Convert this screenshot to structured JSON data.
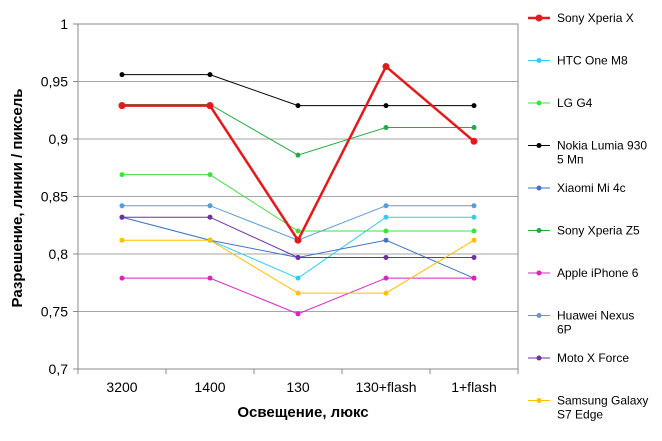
{
  "chart_data": {
    "type": "line",
    "categories": [
      "3200",
      "1400",
      "130",
      "130+flash",
      "1+flash"
    ],
    "xlabel": "Освещение,  люкс",
    "ylabel": "Разрешение,  линии / пиксель",
    "ylim": [
      0.7,
      1.0
    ],
    "yticks": [
      "0,7",
      "0,75",
      "0,8",
      "0,85",
      "0,9",
      "0,95",
      "1"
    ],
    "grid": "horizontal",
    "legend": "right",
    "series": [
      {
        "name": "Sony Xperia X",
        "color": "#e31a1c",
        "highlight": true,
        "values": [
          0.929,
          0.929,
          0.812,
          0.963,
          0.898
        ]
      },
      {
        "name": "HTC One M8",
        "color": "#33ccee",
        "values": [
          0.832,
          0.812,
          0.779,
          0.832,
          0.832
        ]
      },
      {
        "name": "LG G4",
        "color": "#44dd44",
        "values": [
          0.869,
          0.869,
          0.82,
          0.82,
          0.82
        ]
      },
      {
        "name": "Nokia Lumia 930 5 Мп",
        "color": "#000000",
        "values": [
          0.956,
          0.956,
          0.929,
          0.929,
          0.929
        ]
      },
      {
        "name": "Xiaomi Mi 4c",
        "color": "#4472c4",
        "values": [
          0.832,
          0.812,
          0.797,
          0.812,
          0.779
        ]
      },
      {
        "name": "Sony Xperia Z5",
        "color": "#22aa44",
        "values": [
          0.93,
          0.93,
          0.886,
          0.91,
          0.91
        ]
      },
      {
        "name": "Apple iPhone 6",
        "color": "#e020c0",
        "values": [
          0.779,
          0.779,
          0.748,
          0.779,
          0.779
        ]
      },
      {
        "name": "Huawei Nexus 6P",
        "color": "#5b9bd5",
        "values": [
          0.842,
          0.842,
          0.812,
          0.842,
          0.842
        ]
      },
      {
        "name": "Moto X Force",
        "color": "#7030a0",
        "values": [
          0.832,
          0.832,
          0.797,
          0.797,
          0.797
        ]
      },
      {
        "name": "Samsung Galaxy S7 Edge",
        "color": "#ffc000",
        "values": [
          0.812,
          0.812,
          0.766,
          0.766,
          0.812
        ]
      }
    ]
  }
}
